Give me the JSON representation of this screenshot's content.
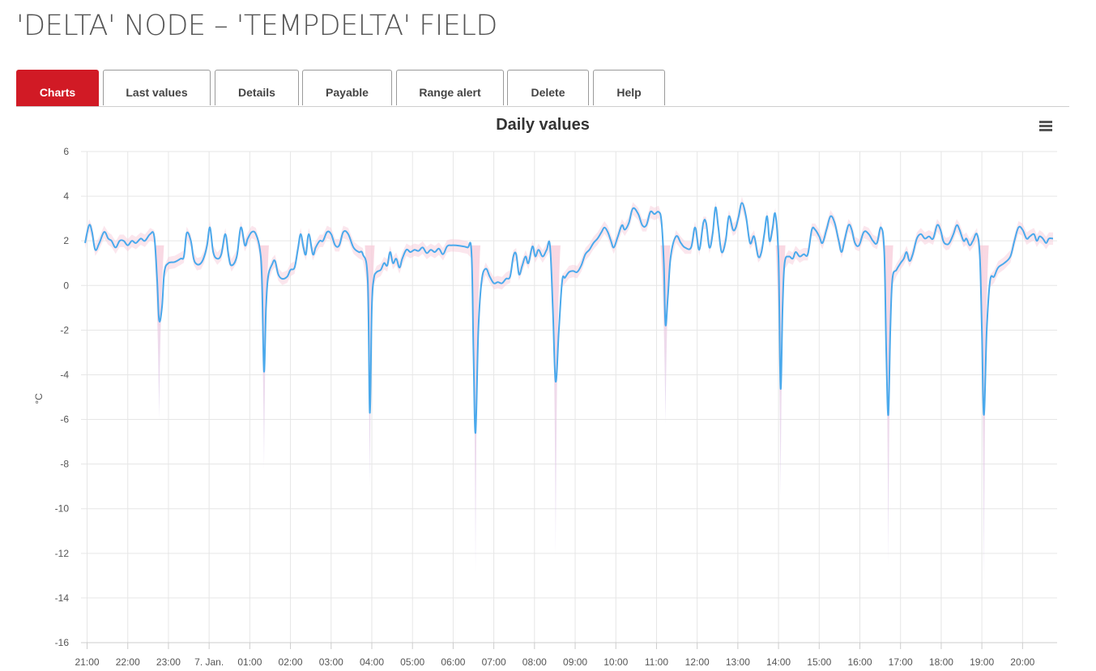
{
  "page": {
    "title": "'DELTA' NODE – 'TEMPDELTA' FIELD"
  },
  "tabs": [
    {
      "label": "Charts",
      "active": true
    },
    {
      "label": "Last values",
      "active": false
    },
    {
      "label": "Details",
      "active": false
    },
    {
      "label": "Payable",
      "active": false
    },
    {
      "label": "Range alert",
      "active": false
    },
    {
      "label": "Delete",
      "active": false
    },
    {
      "label": "Help",
      "active": false
    }
  ],
  "colors": {
    "accent": "#d11a25",
    "line": "#4aa9ec",
    "band_top": "#f7c8d6",
    "band_bottom": "#d9cbee",
    "grid": "#e6e6e6"
  },
  "menu": {
    "icon": "hamburger-menu-icon"
  },
  "chart_data": {
    "type": "line",
    "title": "Daily values",
    "ylabel": "°C",
    "ylim": [
      -16,
      6
    ],
    "yticks": [
      6,
      4,
      2,
      0,
      -2,
      -4,
      -6,
      -8,
      -10,
      -12,
      -14,
      -16
    ],
    "xlim": [
      -0.15,
      23.85
    ],
    "xtick_values": [
      0,
      1,
      2,
      3,
      4,
      5,
      6,
      7,
      8,
      9,
      10,
      11,
      12,
      13,
      14,
      15,
      16,
      17,
      18,
      19,
      20,
      21,
      22,
      23
    ],
    "xtick_labels": [
      "21:00",
      "22:00",
      "23:00",
      "7. Jan.",
      "01:00",
      "02:00",
      "03:00",
      "04:00",
      "05:00",
      "06:00",
      "07:00",
      "08:00",
      "09:00",
      "10:00",
      "11:00",
      "12:00",
      "13:00",
      "14:00",
      "15:00",
      "16:00",
      "17:00",
      "18:00",
      "19:00",
      "20:00"
    ],
    "grid": true,
    "legend": false,
    "series": [
      {
        "values": [
          [
            -0.05,
            1.9
          ],
          [
            0.05,
            2.7
          ],
          [
            0.12,
            2.4
          ],
          [
            0.2,
            1.6
          ],
          [
            0.3,
            1.9
          ],
          [
            0.42,
            2.4
          ],
          [
            0.52,
            2.1
          ],
          [
            0.6,
            2.0
          ],
          [
            0.7,
            1.7
          ],
          [
            0.8,
            2.0
          ],
          [
            0.9,
            2.0
          ],
          [
            1.0,
            1.8
          ],
          [
            1.1,
            2.0
          ],
          [
            1.2,
            1.9
          ],
          [
            1.32,
            2.1
          ],
          [
            1.42,
            2.0
          ],
          [
            1.55,
            2.3
          ],
          [
            1.65,
            2.2
          ],
          [
            1.72,
            0.3
          ],
          [
            1.77,
            -1.55
          ],
          [
            1.84,
            -1.0
          ],
          [
            1.9,
            0.6
          ],
          [
            2.0,
            1.0
          ],
          [
            2.15,
            1.05
          ],
          [
            2.3,
            1.2
          ],
          [
            2.38,
            1.3
          ],
          [
            2.45,
            2.35
          ],
          [
            2.55,
            2.0
          ],
          [
            2.62,
            1.2
          ],
          [
            2.7,
            0.95
          ],
          [
            2.8,
            1.0
          ],
          [
            2.88,
            1.3
          ],
          [
            2.95,
            1.8
          ],
          [
            3.02,
            2.6
          ],
          [
            3.1,
            1.5
          ],
          [
            3.2,
            1.2
          ],
          [
            3.3,
            1.4
          ],
          [
            3.4,
            2.3
          ],
          [
            3.48,
            1.3
          ],
          [
            3.55,
            0.9
          ],
          [
            3.68,
            1.3
          ],
          [
            3.78,
            2.6
          ],
          [
            3.88,
            1.8
          ],
          [
            3.95,
            2.1
          ],
          [
            4.05,
            2.4
          ],
          [
            4.15,
            2.3
          ],
          [
            4.25,
            1.6
          ],
          [
            4.3,
            0.2
          ],
          [
            4.35,
            -3.85
          ],
          [
            4.4,
            -1.0
          ],
          [
            4.45,
            0.4
          ],
          [
            4.55,
            0.95
          ],
          [
            4.62,
            1.1
          ],
          [
            4.7,
            0.5
          ],
          [
            4.8,
            0.3
          ],
          [
            4.92,
            0.4
          ],
          [
            5.0,
            0.7
          ],
          [
            5.1,
            0.8
          ],
          [
            5.18,
            1.6
          ],
          [
            5.25,
            2.3
          ],
          [
            5.32,
            1.7
          ],
          [
            5.38,
            1.4
          ],
          [
            5.45,
            2.3
          ],
          [
            5.55,
            1.4
          ],
          [
            5.62,
            1.7
          ],
          [
            5.72,
            2.0
          ],
          [
            5.8,
            2.0
          ],
          [
            5.9,
            2.4
          ],
          [
            6.0,
            2.3
          ],
          [
            6.1,
            1.8
          ],
          [
            6.2,
            1.8
          ],
          [
            6.3,
            2.4
          ],
          [
            6.42,
            2.3
          ],
          [
            6.55,
            1.7
          ],
          [
            6.68,
            1.5
          ],
          [
            6.78,
            1.4
          ],
          [
            6.9,
            0.2
          ],
          [
            6.95,
            -5.7
          ],
          [
            7.0,
            -1.0
          ],
          [
            7.05,
            0.3
          ],
          [
            7.12,
            0.6
          ],
          [
            7.22,
            0.7
          ],
          [
            7.3,
            1.0
          ],
          [
            7.38,
            0.9
          ],
          [
            7.45,
            1.5
          ],
          [
            7.52,
            1.0
          ],
          [
            7.6,
            1.2
          ],
          [
            7.68,
            0.8
          ],
          [
            7.75,
            1.2
          ],
          [
            7.85,
            1.6
          ],
          [
            7.95,
            1.5
          ],
          [
            8.05,
            1.6
          ],
          [
            8.15,
            1.55
          ],
          [
            8.25,
            1.7
          ],
          [
            8.35,
            1.45
          ],
          [
            8.45,
            1.6
          ],
          [
            8.55,
            1.5
          ],
          [
            8.65,
            1.65
          ],
          [
            8.75,
            1.4
          ],
          [
            8.85,
            1.75
          ],
          [
            8.95,
            1.8
          ],
          [
            9.15,
            1.78
          ],
          [
            9.35,
            1.7
          ],
          [
            9.45,
            1.5
          ],
          [
            9.5,
            -3.0
          ],
          [
            9.55,
            -6.6
          ],
          [
            9.62,
            -2.0
          ],
          [
            9.7,
            0.2
          ],
          [
            9.8,
            0.75
          ],
          [
            9.9,
            0.4
          ],
          [
            10.0,
            0.1
          ],
          [
            10.1,
            0.15
          ],
          [
            10.2,
            0.1
          ],
          [
            10.3,
            0.3
          ],
          [
            10.4,
            0.4
          ],
          [
            10.48,
            1.3
          ],
          [
            10.55,
            1.4
          ],
          [
            10.62,
            0.5
          ],
          [
            10.7,
            0.9
          ],
          [
            10.78,
            1.3
          ],
          [
            10.85,
            1.0
          ],
          [
            10.95,
            1.75
          ],
          [
            11.02,
            1.3
          ],
          [
            11.1,
            1.6
          ],
          [
            11.2,
            1.3
          ],
          [
            11.3,
            1.6
          ],
          [
            11.38,
            1.8
          ],
          [
            11.45,
            -1.0
          ],
          [
            11.52,
            -4.3
          ],
          [
            11.6,
            -2.0
          ],
          [
            11.68,
            0.2
          ],
          [
            11.75,
            0.35
          ],
          [
            11.85,
            0.6
          ],
          [
            11.95,
            0.65
          ],
          [
            12.05,
            0.6
          ],
          [
            12.15,
            0.9
          ],
          [
            12.25,
            1.4
          ],
          [
            12.35,
            1.6
          ],
          [
            12.45,
            1.9
          ],
          [
            12.55,
            2.1
          ],
          [
            12.65,
            2.4
          ],
          [
            12.72,
            2.6
          ],
          [
            12.8,
            2.4
          ],
          [
            12.88,
            2.0
          ],
          [
            12.95,
            1.7
          ],
          [
            13.05,
            2.2
          ],
          [
            13.15,
            2.7
          ],
          [
            13.22,
            2.5
          ],
          [
            13.32,
            2.8
          ],
          [
            13.42,
            3.45
          ],
          [
            13.55,
            3.2
          ],
          [
            13.65,
            2.7
          ],
          [
            13.75,
            2.7
          ],
          [
            13.85,
            3.3
          ],
          [
            13.95,
            3.2
          ],
          [
            14.05,
            3.3
          ],
          [
            14.12,
            2.9
          ],
          [
            14.18,
            1.0
          ],
          [
            14.22,
            -1.75
          ],
          [
            14.28,
            -0.5
          ],
          [
            14.35,
            1.3
          ],
          [
            14.48,
            2.2
          ],
          [
            14.6,
            1.9
          ],
          [
            14.7,
            1.7
          ],
          [
            14.85,
            1.7
          ],
          [
            14.95,
            2.6
          ],
          [
            15.05,
            1.6
          ],
          [
            15.15,
            2.8
          ],
          [
            15.22,
            2.8
          ],
          [
            15.3,
            1.7
          ],
          [
            15.38,
            2.3
          ],
          [
            15.45,
            3.5
          ],
          [
            15.52,
            2.6
          ],
          [
            15.6,
            1.5
          ],
          [
            15.7,
            2.0
          ],
          [
            15.78,
            3.1
          ],
          [
            15.88,
            2.5
          ],
          [
            15.95,
            2.6
          ],
          [
            16.02,
            3.1
          ],
          [
            16.1,
            3.7
          ],
          [
            16.2,
            3.1
          ],
          [
            16.3,
            1.9
          ],
          [
            16.4,
            2.2
          ],
          [
            16.5,
            1.3
          ],
          [
            16.58,
            1.5
          ],
          [
            16.65,
            2.3
          ],
          [
            16.72,
            3.1
          ],
          [
            16.78,
            2.0
          ],
          [
            16.85,
            2.5
          ],
          [
            16.92,
            3.2
          ],
          [
            17.0,
            1.2
          ],
          [
            17.05,
            -4.6
          ],
          [
            17.1,
            -1.0
          ],
          [
            17.15,
            1.0
          ],
          [
            17.25,
            1.3
          ],
          [
            17.35,
            1.2
          ],
          [
            17.42,
            1.5
          ],
          [
            17.52,
            1.3
          ],
          [
            17.62,
            1.4
          ],
          [
            17.72,
            1.4
          ],
          [
            17.82,
            2.5
          ],
          [
            17.9,
            2.5
          ],
          [
            18.0,
            2.2
          ],
          [
            18.08,
            1.9
          ],
          [
            18.18,
            2.5
          ],
          [
            18.28,
            3.1
          ],
          [
            18.38,
            2.8
          ],
          [
            18.48,
            2.0
          ],
          [
            18.55,
            1.5
          ],
          [
            18.62,
            2.0
          ],
          [
            18.72,
            2.7
          ],
          [
            18.8,
            2.5
          ],
          [
            18.88,
            1.9
          ],
          [
            18.98,
            1.8
          ],
          [
            19.1,
            2.4
          ],
          [
            19.22,
            2.3
          ],
          [
            19.32,
            2.0
          ],
          [
            19.42,
            1.9
          ],
          [
            19.52,
            2.6
          ],
          [
            19.6,
            1.5
          ],
          [
            19.65,
            -3.0
          ],
          [
            19.7,
            -5.8
          ],
          [
            19.75,
            -2.0
          ],
          [
            19.8,
            0.3
          ],
          [
            19.9,
            0.7
          ],
          [
            20.0,
            1.0
          ],
          [
            20.08,
            1.2
          ],
          [
            20.15,
            1.5
          ],
          [
            20.22,
            1.1
          ],
          [
            20.3,
            1.4
          ],
          [
            20.4,
            2.1
          ],
          [
            20.5,
            2.3
          ],
          [
            20.6,
            2.1
          ],
          [
            20.7,
            2.2
          ],
          [
            20.8,
            2.1
          ],
          [
            20.9,
            2.7
          ],
          [
            20.98,
            2.5
          ],
          [
            21.05,
            2.0
          ],
          [
            21.12,
            1.85
          ],
          [
            21.2,
            1.9
          ],
          [
            21.3,
            2.3
          ],
          [
            21.38,
            2.7
          ],
          [
            21.45,
            2.5
          ],
          [
            21.55,
            2.0
          ],
          [
            21.62,
            2.1
          ],
          [
            21.7,
            1.8
          ],
          [
            21.78,
            2.0
          ],
          [
            21.88,
            2.3
          ],
          [
            21.95,
            1.3
          ],
          [
            22.0,
            -2.0
          ],
          [
            22.05,
            -5.8
          ],
          [
            22.12,
            -2.0
          ],
          [
            22.2,
            0.2
          ],
          [
            22.3,
            0.4
          ],
          [
            22.4,
            0.8
          ],
          [
            22.55,
            1.0
          ],
          [
            22.7,
            1.3
          ],
          [
            22.8,
            2.0
          ],
          [
            22.9,
            2.6
          ],
          [
            23.0,
            2.5
          ],
          [
            23.1,
            2.1
          ],
          [
            23.18,
            2.2
          ],
          [
            23.28,
            2.3
          ],
          [
            23.35,
            2.0
          ],
          [
            23.42,
            2.2
          ],
          [
            23.5,
            2.1
          ],
          [
            23.58,
            1.9
          ],
          [
            23.65,
            2.1
          ],
          [
            23.75,
            2.1
          ]
        ],
        "dip_min": [
          [
            1.77,
            -6.0
          ],
          [
            4.35,
            -8.2
          ],
          [
            6.95,
            -9.0
          ],
          [
            9.55,
            -12.8
          ],
          [
            11.52,
            -12.0
          ],
          [
            14.22,
            -6.2
          ],
          [
            17.05,
            -9.5
          ],
          [
            19.7,
            -12.5
          ],
          [
            22.05,
            -13.2
          ]
        ]
      }
    ]
  }
}
